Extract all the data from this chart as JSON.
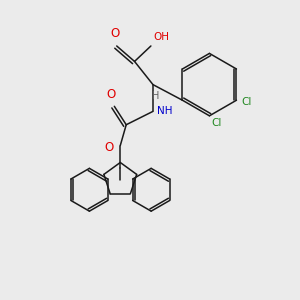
{
  "background_color": "#ebebeb",
  "bond_color": "#1a1a1a",
  "atom_colors": {
    "O": "#e00000",
    "N": "#0000cc",
    "Cl": "#228822",
    "H": "#606060"
  },
  "lw": 1.1
}
